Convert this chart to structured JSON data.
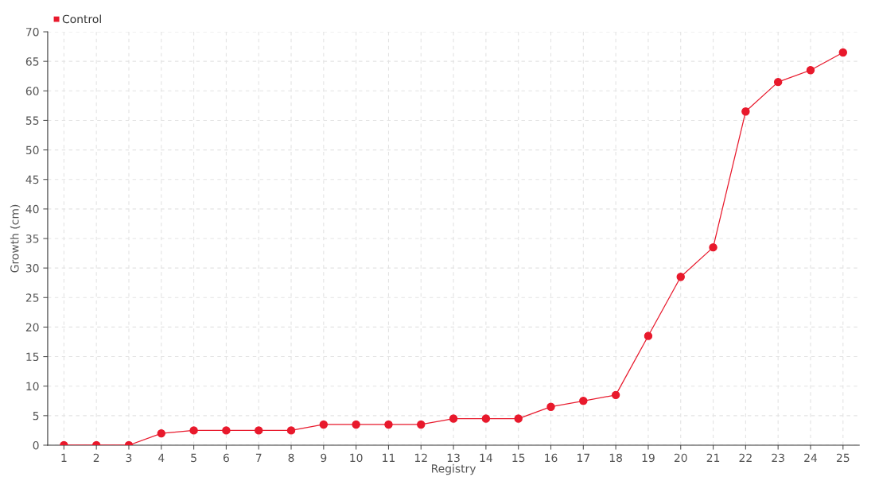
{
  "chart_data": {
    "type": "line",
    "xlabel": "Registry",
    "ylabel": "Growth (cm)",
    "categories": [
      "1",
      "2",
      "3",
      "4",
      "5",
      "6",
      "7",
      "8",
      "9",
      "10",
      "11",
      "12",
      "13",
      "14",
      "15",
      "16",
      "17",
      "18",
      "19",
      "20",
      "21",
      "22",
      "23",
      "24",
      "25"
    ],
    "series": [
      {
        "name": "Control",
        "color": "#e8192c",
        "values": [
          0,
          0,
          0,
          2,
          2.5,
          2.5,
          2.5,
          2.5,
          3.5,
          3.5,
          3.5,
          3.5,
          4.5,
          4.5,
          4.5,
          6.5,
          7.5,
          8.5,
          18.5,
          28.5,
          33.5,
          56.5,
          61.5,
          63.5,
          66.5
        ]
      }
    ],
    "ylim": [
      0,
      70
    ],
    "yticks": [
      0,
      5,
      10,
      15,
      20,
      25,
      30,
      35,
      40,
      45,
      50,
      55,
      60,
      65,
      70
    ],
    "grid": true,
    "legend": "top left",
    "marker": "circle",
    "line_style": "solid"
  }
}
